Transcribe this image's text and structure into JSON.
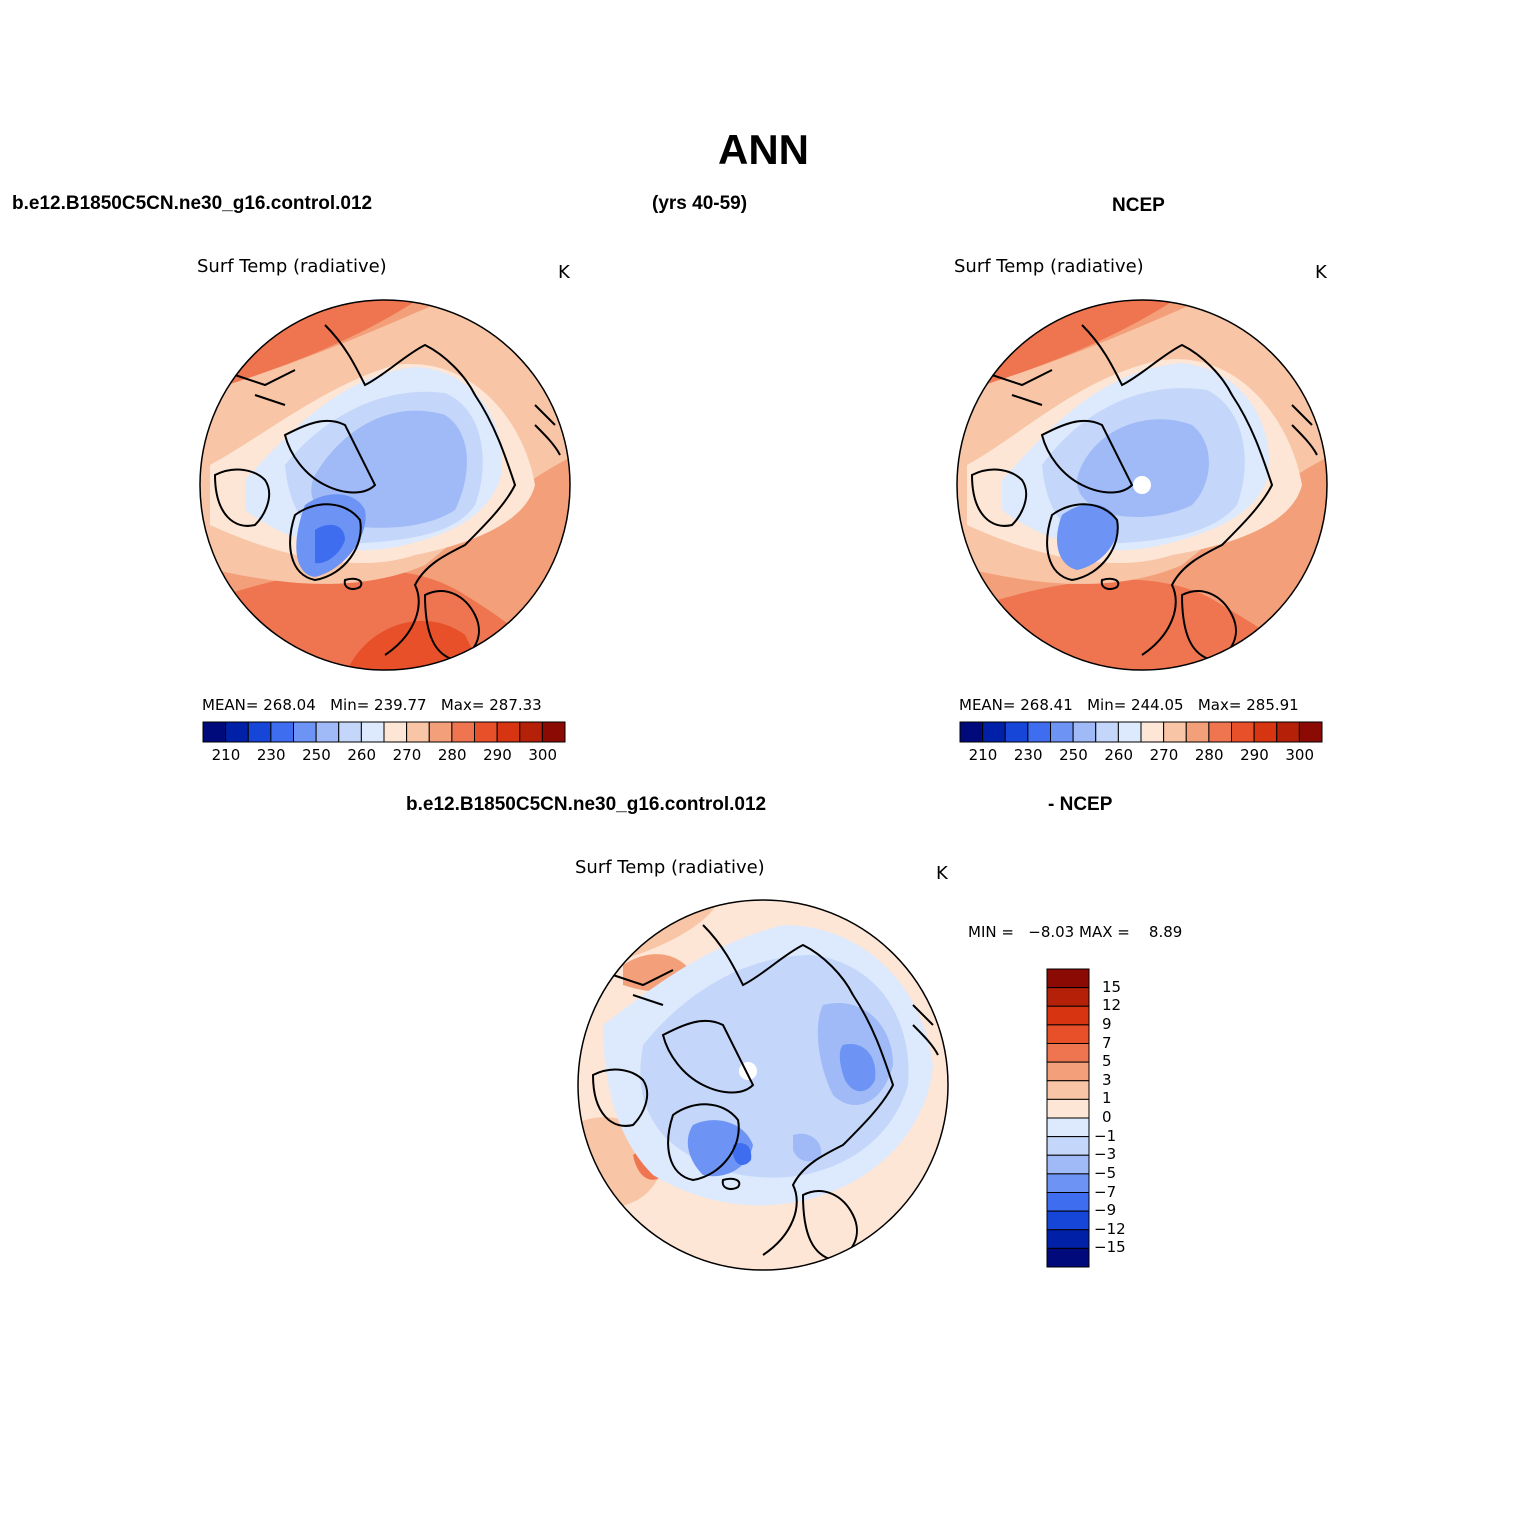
{
  "figure": {
    "season": "ANN",
    "case_name": "b.e12.B1850C5CN.ne30_g16.control.012",
    "years": "(yrs 40-59)",
    "obs_name": "NCEP",
    "diff_case_name": "b.e12.B1850C5CN.ne30_g16.control.012",
    "diff_obs_name": "- NCEP"
  },
  "panels": {
    "model": {
      "title": "Surf Temp (radiative)",
      "units": "K",
      "mean_label": "MEAN=",
      "mean": "268.04",
      "min_label": "Min=",
      "min": "239.77",
      "max_label": "Max=",
      "max": "287.33"
    },
    "obs": {
      "title": "Surf Temp (radiative)",
      "units": "K",
      "mean_label": "MEAN=",
      "mean": "268.41",
      "min_label": "Min=",
      "min": "244.05",
      "max_label": "Max=",
      "max": "285.91"
    },
    "diff": {
      "title": "Surf Temp (radiative)",
      "units": "K",
      "min_label": "MIN =",
      "min": "−8.03",
      "max_label": "MAX =",
      "max": "8.89"
    }
  },
  "abs_colorbar": {
    "colors": [
      "#000a7a",
      "#0020a8",
      "#1646d8",
      "#3e6df0",
      "#6d94f5",
      "#9fbaf7",
      "#c4d6fa",
      "#dde9fc",
      "#fde6d6",
      "#f8c6a7",
      "#f3a07a",
      "#ee7550",
      "#e8502a",
      "#d73411",
      "#b42008",
      "#8b0a04"
    ],
    "tick_labels": [
      "210",
      "230",
      "250",
      "260",
      "270",
      "280",
      "290",
      "300"
    ]
  },
  "diff_colorbar": {
    "colors": [
      "#8b0a04",
      "#b42008",
      "#d73411",
      "#e8502a",
      "#ee7550",
      "#f3a07a",
      "#f8c6a7",
      "#fde6d6",
      "#dde9fc",
      "#c4d6fa",
      "#9fbaf7",
      "#6d94f5",
      "#3e6df0",
      "#1646d8",
      "#0020a8",
      "#000a7a"
    ],
    "tick_labels": [
      "15",
      "12",
      "9",
      "7",
      "5",
      "3",
      "1",
      "0",
      "−1",
      "−3",
      "−5",
      "−7",
      "−9",
      "−12",
      "−15"
    ]
  }
}
